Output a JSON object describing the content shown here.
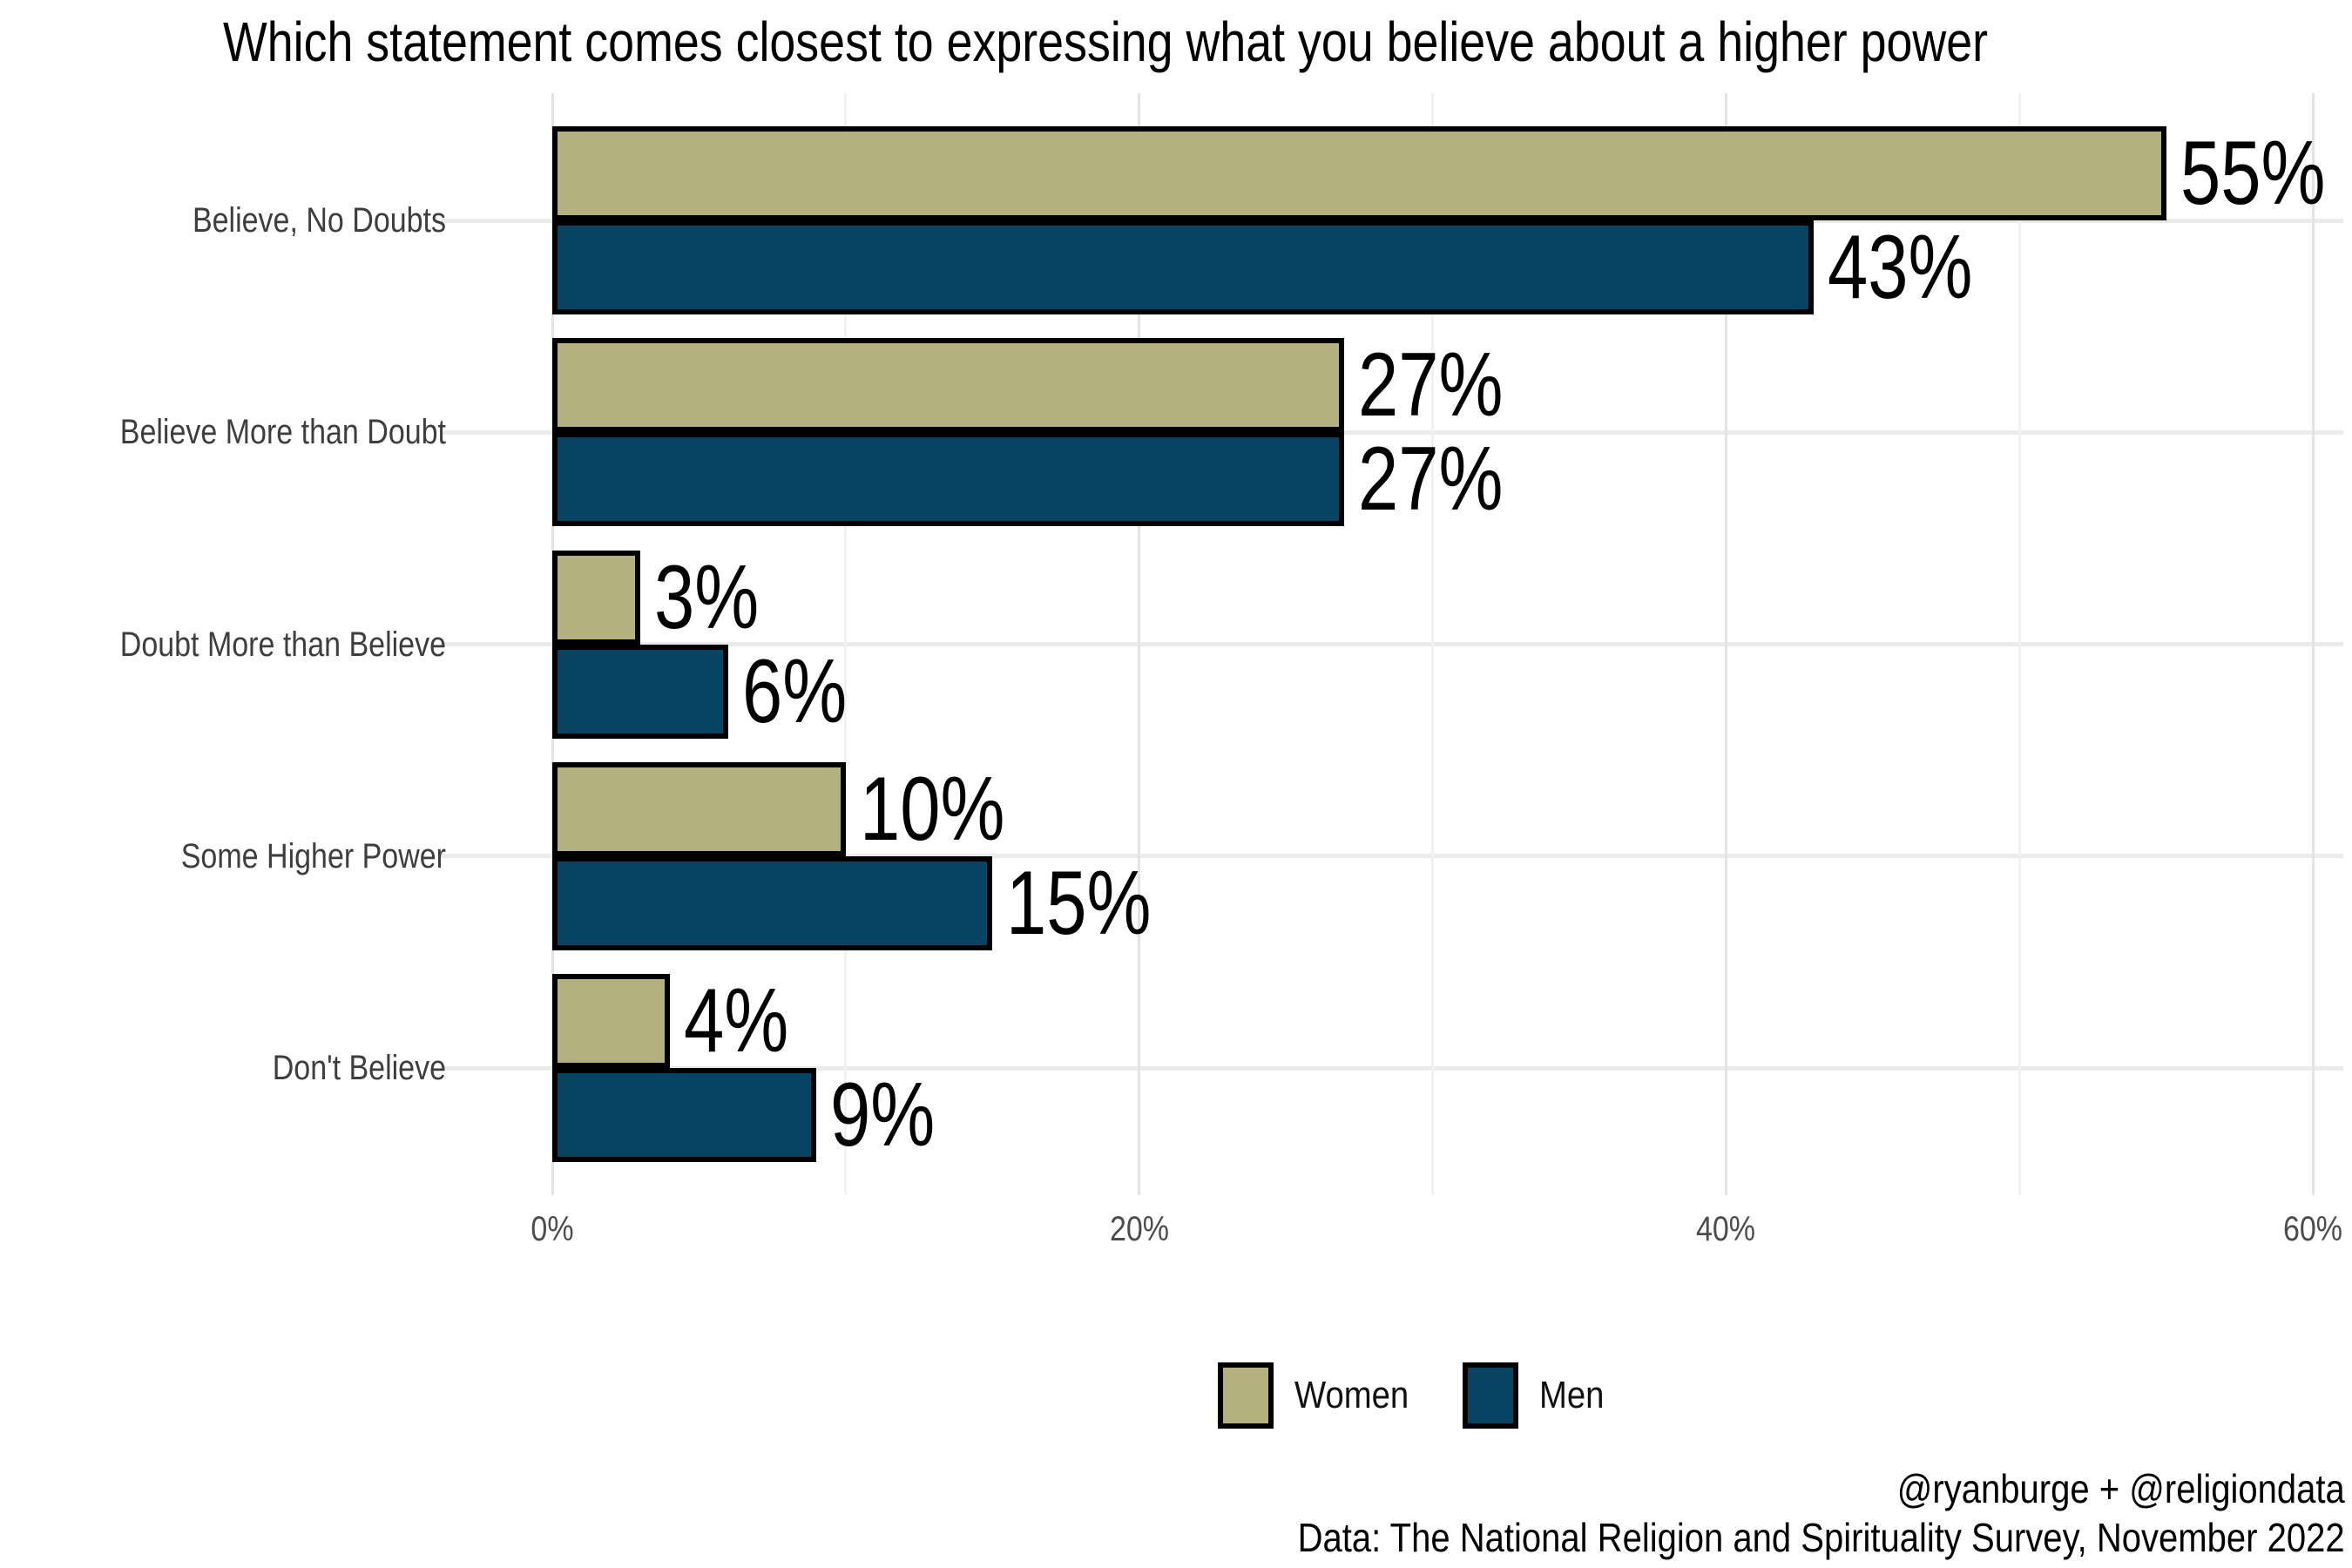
{
  "chart_data": {
    "type": "bar",
    "orientation": "horizontal",
    "title": "Which statement comes closest to expressing what you believe about a higher power",
    "categories": [
      "Believe, No Doubts",
      "Believe More than Doubt",
      "Doubt More than Believe",
      "Some Higher Power",
      "Don't Believe"
    ],
    "series": [
      {
        "name": "Women",
        "color": "#b5b17e",
        "values": [
          55,
          27,
          3,
          10,
          4
        ]
      },
      {
        "name": "Men",
        "color": "#074363",
        "values": [
          43,
          27,
          6,
          15,
          9
        ]
      }
    ],
    "value_label_suffix": "%",
    "xlabel": "",
    "ylabel": "",
    "xlim": [
      0,
      60
    ],
    "x_ticks": [
      {
        "label": "0%",
        "value": 0
      },
      {
        "label": "20%",
        "value": 20
      },
      {
        "label": "40%",
        "value": 40
      },
      {
        "label": "60%",
        "value": 60
      }
    ],
    "x_minor_gridlines": [
      10,
      30,
      50
    ],
    "grid": true,
    "legend_position": "bottom",
    "bar_outline_color": "#000000",
    "major_gridline_color": "#e3e3e3",
    "minor_gridline_color": "#f1f1f1",
    "category_gridline_color": "#ebebeb"
  },
  "footer": {
    "credit": "@ryanburge + @religiondata",
    "source": "Data: The National Religion and Spirituality Survey, November 2022"
  }
}
